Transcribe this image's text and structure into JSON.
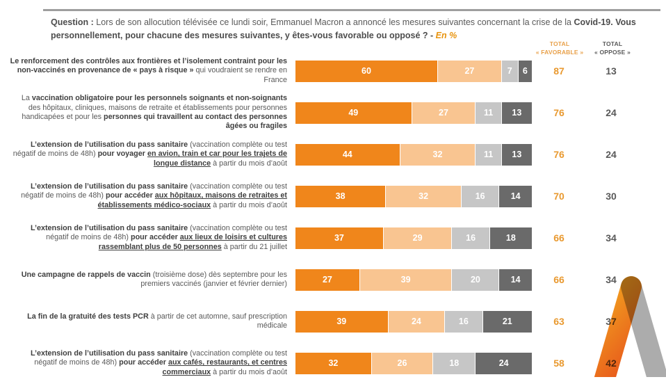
{
  "question": {
    "prefix": "Question : ",
    "body": "Lors de son allocution télévisée ce lundi soir, Emmanuel Macron a annoncé les mesures suivantes concernant la crise de la ",
    "bold": "Covid-19. Vous personnellement, pour chacune des mesures suivantes, y êtes-vous favorable ou opposé ? ",
    "dash": "- ",
    "unit_note": "En %"
  },
  "columns": {
    "favorable": {
      "line1": "TOTAL",
      "line2": "« FAVORABLE »"
    },
    "oppose": {
      "line1": "TOTAL",
      "line2": "« OPPOSE »"
    }
  },
  "colors": {
    "rule": "#9E9E9E",
    "total_favorable_text": "#E9992F",
    "total_oppose_text": "#595959",
    "question_accent": "#E8940F"
  },
  "logo": {
    "icon": "elabe-chevron-logo",
    "orange_top": "#F2A61F",
    "orange_bottom": "#E85A1C",
    "gray": "#ACACAC"
  },
  "chart_data": {
    "type": "bar",
    "stacked": true,
    "orientation": "horizontal",
    "xlim": [
      0,
      100
    ],
    "unit": "%",
    "legend_visible": false,
    "series_names": [
      "orange-fonce",
      "orange-clair",
      "gris-clair",
      "gris-fonce"
    ],
    "series_colors": [
      "#F0861B",
      "#F9C591",
      "#C6C6C6",
      "#6A6A6A"
    ],
    "rows": [
      {
        "label_segments": [
          {
            "text": "Le renforcement des contrôles aux frontières et l’isolement contraint pour les non-vaccinés en provenance de « pays à risque »",
            "bold": true
          },
          {
            "text": " qui voudraient se rendre en France"
          }
        ],
        "values": [
          60,
          27,
          7,
          6
        ],
        "total_favorable": 87,
        "total_oppose": 13
      },
      {
        "label_segments": [
          {
            "text": "La "
          },
          {
            "text": "vaccination obligatoire pour les personnels soignants et non-soignants",
            "bold": true
          },
          {
            "text": " des hôpitaux, cliniques, maisons de retraite et établissements pour personnes handicapées et pour les "
          },
          {
            "text": "personnes qui travaillent au contact des personnes âgées ou fragiles",
            "bold": true
          }
        ],
        "values": [
          49,
          27,
          11,
          13
        ],
        "total_favorable": 76,
        "total_oppose": 24
      },
      {
        "label_segments": [
          {
            "text": "L’extension de l’utilisation du pass sanitaire",
            "bold": true
          },
          {
            "text": " (vaccination complète ou test négatif de moins de 48h) "
          },
          {
            "text": "pour voyager ",
            "bold": true
          },
          {
            "text": "en avion, train et car pour les trajets de longue distance",
            "bold": true,
            "underline": true
          },
          {
            "text": " à partir du mois d’août"
          }
        ],
        "values": [
          44,
          32,
          11,
          13
        ],
        "total_favorable": 76,
        "total_oppose": 24
      },
      {
        "label_segments": [
          {
            "text": "L’extension de l’utilisation du pass sanitaire",
            "bold": true
          },
          {
            "text": " (vaccination complète ou test négatif de moins de 48h) "
          },
          {
            "text": "pour accéder ",
            "bold": true
          },
          {
            "text": "aux hôpitaux, maisons de retraites et établissements médico-sociaux",
            "bold": true,
            "underline": true
          },
          {
            "text": " à partir du mois d’août"
          }
        ],
        "values": [
          38,
          32,
          16,
          14
        ],
        "total_favorable": 70,
        "total_oppose": 30
      },
      {
        "label_segments": [
          {
            "text": "L’extension de l’utilisation du pass sanitaire",
            "bold": true
          },
          {
            "text": " (vaccination complète ou test négatif de moins de 48h) "
          },
          {
            "text": "pour accéder ",
            "bold": true
          },
          {
            "text": "aux lieux de loisirs et cultures rassemblant plus de 50 personnes",
            "bold": true,
            "underline": true
          },
          {
            "text": " à partir du 21 juillet"
          }
        ],
        "values": [
          37,
          29,
          16,
          18
        ],
        "total_favorable": 66,
        "total_oppose": 34
      },
      {
        "label_segments": [
          {
            "text": "Une campagne de rappels de vaccin",
            "bold": true
          },
          {
            "text": " (troisième dose) dès septembre pour les premiers vaccinés (janvier et février dernier)"
          }
        ],
        "values": [
          27,
          39,
          20,
          14
        ],
        "total_favorable": 66,
        "total_oppose": 34
      },
      {
        "label_segments": [
          {
            "text": "La fin de la gratuité des tests PCR",
            "bold": true
          },
          {
            "text": " à partir de cet automne, sauf prescription médicale"
          }
        ],
        "values": [
          39,
          24,
          16,
          21
        ],
        "total_favorable": 63,
        "total_oppose": 37
      },
      {
        "label_segments": [
          {
            "text": "L’extension de l’utilisation du pass sanitaire",
            "bold": true
          },
          {
            "text": " (vaccination complète ou test négatif de moins de 48h) "
          },
          {
            "text": "pour accéder ",
            "bold": true
          },
          {
            "text": "aux cafés, restaurants, et centres commerciaux",
            "bold": true,
            "underline": true
          },
          {
            "text": " à partir du mois d’août"
          }
        ],
        "values": [
          32,
          26,
          18,
          24
        ],
        "total_favorable": 58,
        "total_oppose": 42
      }
    ]
  }
}
